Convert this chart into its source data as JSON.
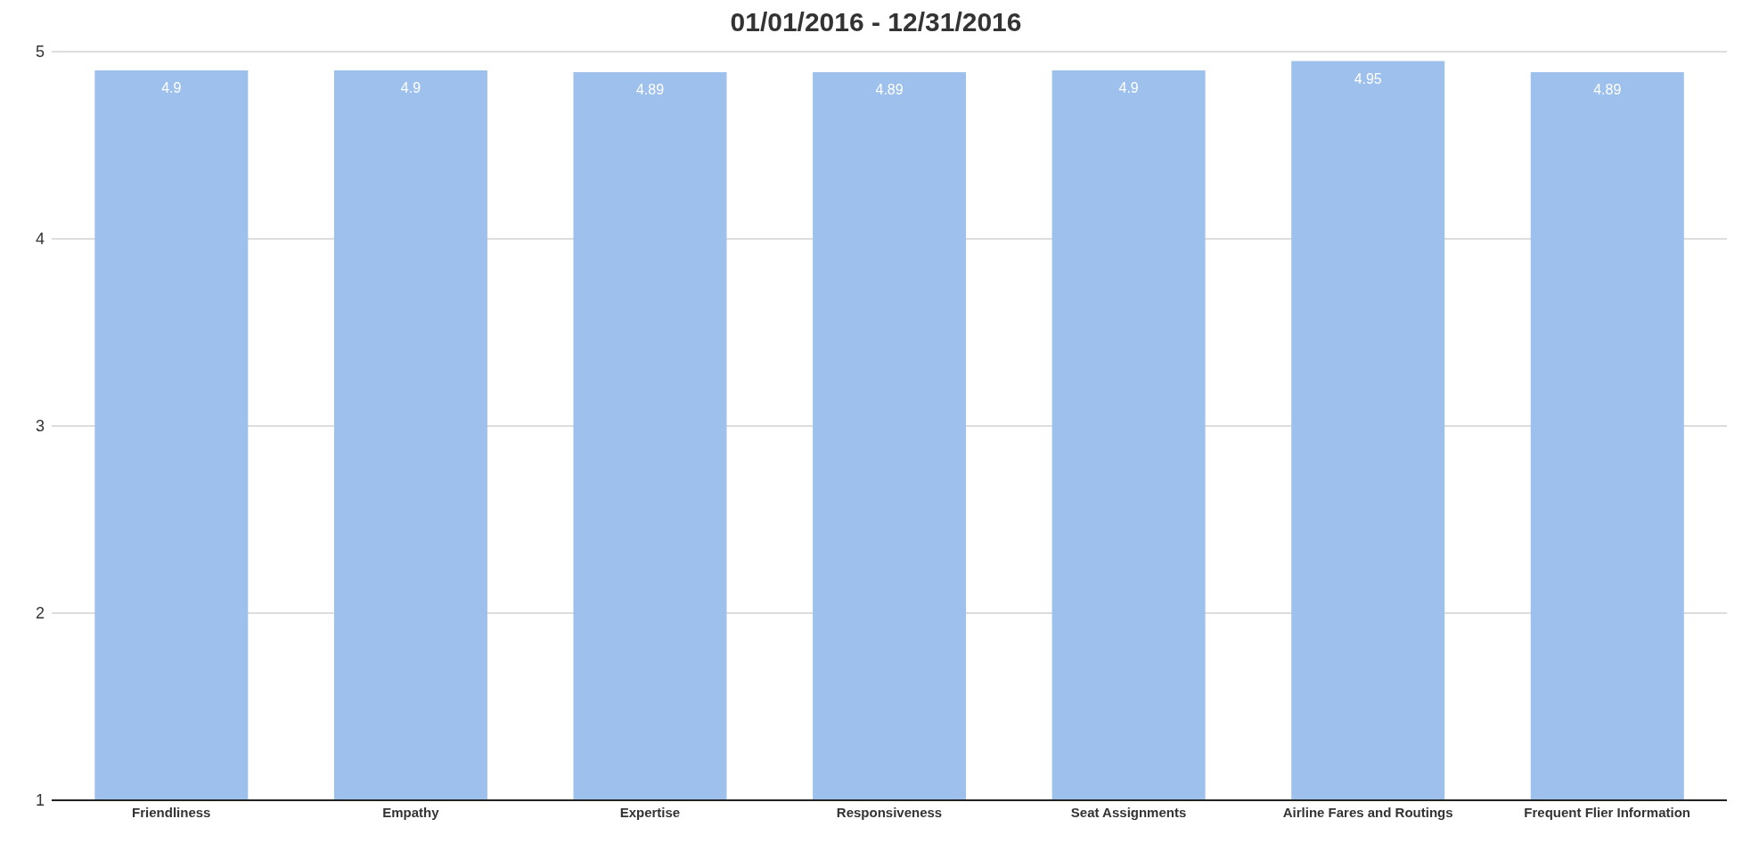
{
  "chart_data": {
    "type": "bar",
    "title": "01/01/2016 - 12/31/2016",
    "categories": [
      "Friendliness",
      "Empathy",
      "Expertise",
      "Responsiveness",
      "Seat Assignments",
      "Airline Fares and Routings",
      "Frequent Flier Information"
    ],
    "values": [
      4.9,
      4.9,
      4.89,
      4.89,
      4.9,
      4.95,
      4.89
    ],
    "color": "#9dc0ec",
    "ylim": [
      1,
      5
    ],
    "yticks": [
      1,
      2,
      3,
      4,
      5
    ],
    "grid": "y",
    "data_labels": true
  }
}
